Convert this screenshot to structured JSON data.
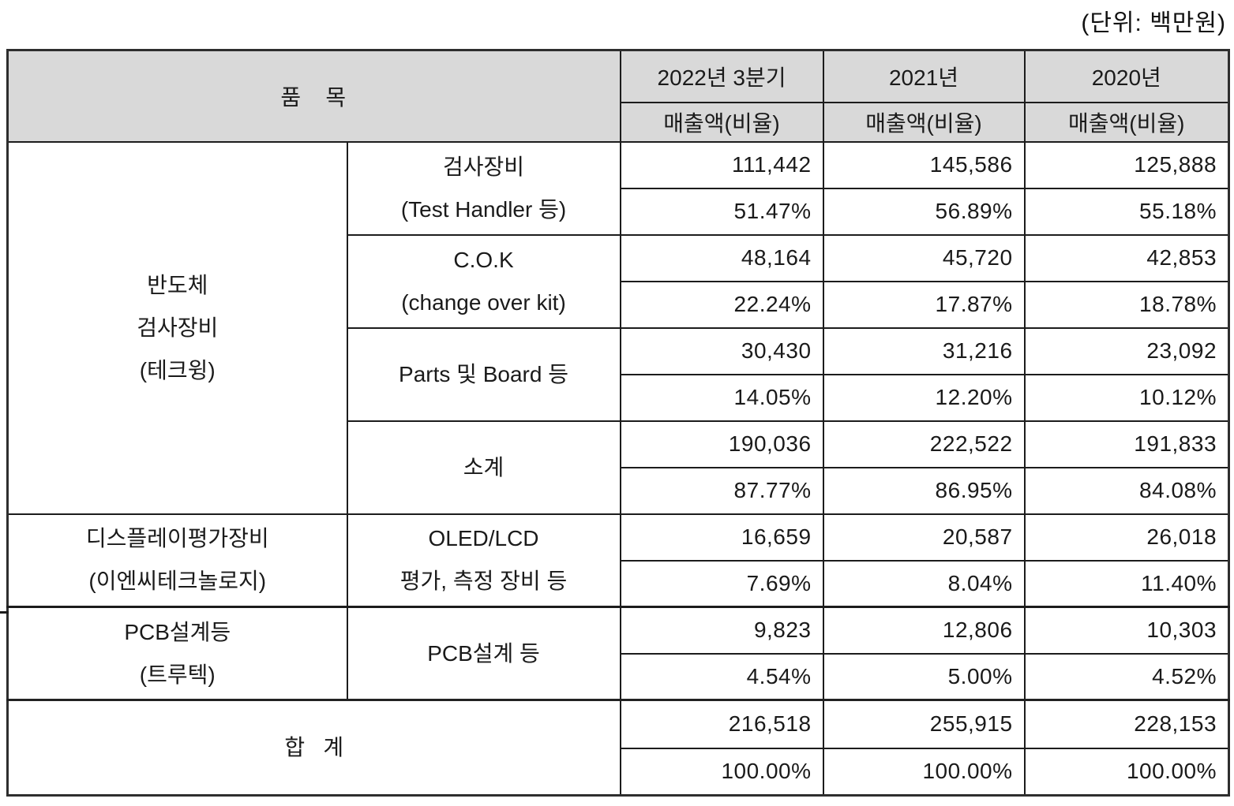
{
  "unit_label": "(단위: 백만원)",
  "table": {
    "header": {
      "item": "품   목",
      "periods": [
        "2022년 3분기",
        "2021년",
        "2020년"
      ],
      "measure": "매출액(비율)"
    },
    "sections": {
      "semiconductor": {
        "group_label": "반도체\n검사장비\n(테크윙)",
        "items": [
          {
            "label": "검사장비\n(Test Handler 등)",
            "amounts": [
              "111,442",
              "145,586",
              "125,888"
            ],
            "ratios": [
              "51.47%",
              "56.89%",
              "55.18%"
            ]
          },
          {
            "label": "C.O.K\n(change over kit)",
            "amounts": [
              "48,164",
              "45,720",
              "42,853"
            ],
            "ratios": [
              "22.24%",
              "17.87%",
              "18.78%"
            ]
          },
          {
            "label": "Parts 및 Board 등",
            "amounts": [
              "30,430",
              "31,216",
              "23,092"
            ],
            "ratios": [
              "14.05%",
              "12.20%",
              "10.12%"
            ]
          },
          {
            "label": "소계",
            "amounts": [
              "190,036",
              "222,522",
              "191,833"
            ],
            "ratios": [
              "87.77%",
              "86.95%",
              "84.08%"
            ]
          }
        ]
      },
      "display": {
        "group_label": "디스플레이평가장비\n(이엔씨테크놀로지)",
        "items": [
          {
            "label": "OLED/LCD\n평가, 측정 장비 등",
            "amounts": [
              "16,659",
              "20,587",
              "26,018"
            ],
            "ratios": [
              "7.69%",
              "8.04%",
              "11.40%"
            ]
          }
        ]
      },
      "pcb": {
        "group_label": "PCB설계등\n(트루텍)",
        "items": [
          {
            "label": "PCB설계 등",
            "amounts": [
              "9,823",
              "12,806",
              "10,303"
            ],
            "ratios": [
              "4.54%",
              "5.00%",
              "4.52%"
            ]
          }
        ]
      },
      "total": {
        "label": "합   계",
        "amounts": [
          "216,518",
          "255,915",
          "228,153"
        ],
        "ratios": [
          "100.00%",
          "100.00%",
          "100.00%"
        ]
      }
    }
  }
}
